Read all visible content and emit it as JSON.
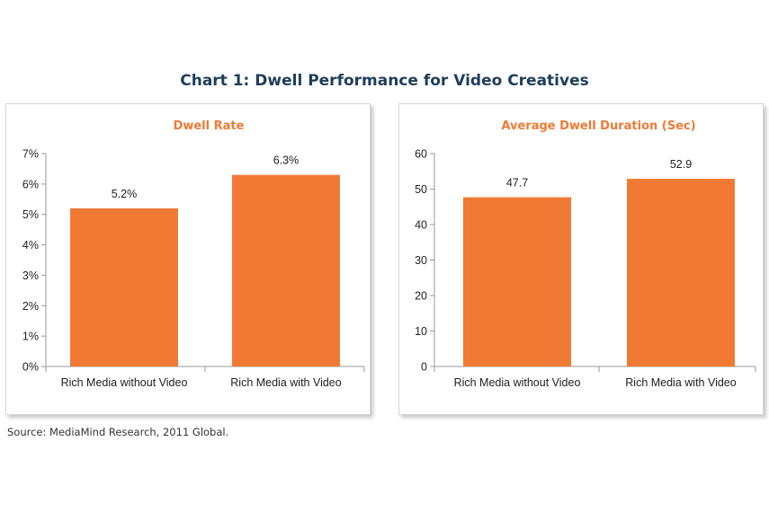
{
  "title": "Chart 1: Dwell Performance for Video Creatives",
  "source": "Source:  MediaMind Research, 2011 Global.",
  "colors": {
    "bar": "#f07a34",
    "title": "#1f3d5c",
    "subtitle": "#f07a34"
  },
  "chart_data": [
    {
      "type": "bar",
      "title": "Dwell Rate",
      "categories": [
        "Rich Media without Video",
        "Rich Media with Video"
      ],
      "values": [
        5.2,
        6.3
      ],
      "value_labels": [
        "5.2%",
        "6.3%"
      ],
      "yticks": [
        "0%",
        "1%",
        "2%",
        "3%",
        "4%",
        "5%",
        "6%",
        "7%"
      ],
      "ylim": [
        0,
        7
      ],
      "grid": false
    },
    {
      "type": "bar",
      "title": "Average Dwell Duration (Sec)",
      "categories": [
        "Rich Media without Video",
        "Rich Media with Video"
      ],
      "values": [
        47.7,
        52.9
      ],
      "value_labels": [
        "47.7",
        "52.9"
      ],
      "yticks": [
        "0",
        "10",
        "20",
        "30",
        "40",
        "50",
        "60"
      ],
      "ylim": [
        0,
        60
      ],
      "grid": false
    }
  ]
}
